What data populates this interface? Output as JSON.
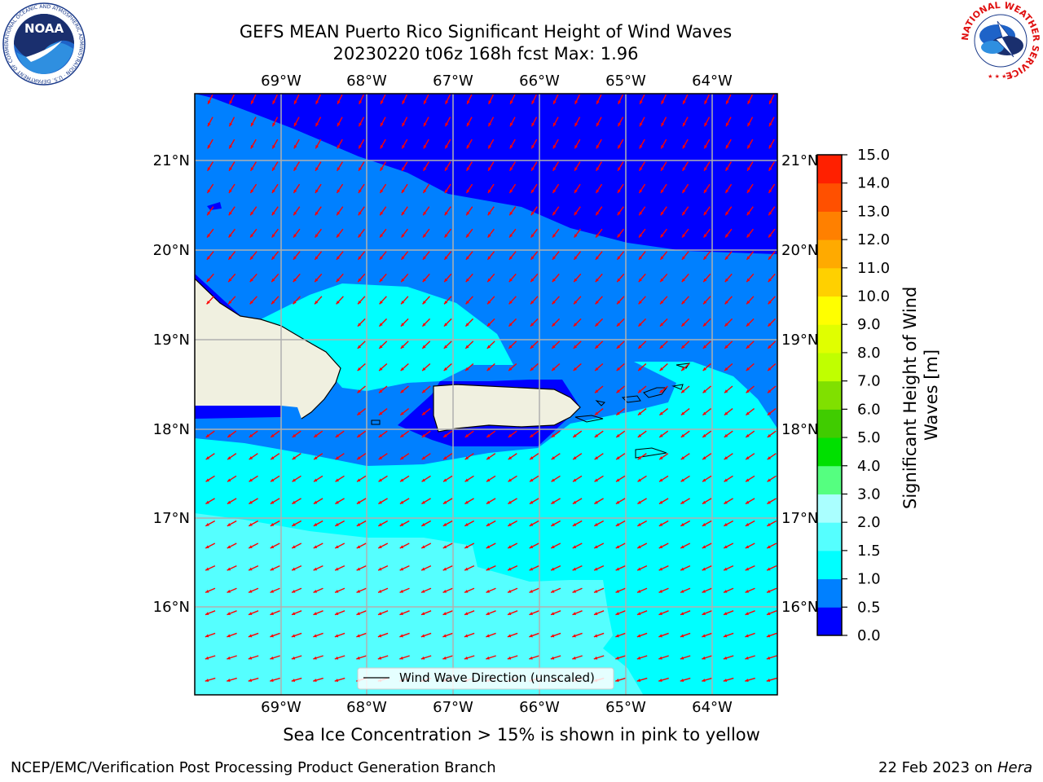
{
  "header": {
    "title_line1": "GEFS MEAN Puerto Rico Significant Height of Wind Waves",
    "title_line2": "20230220 t06z 168h fcst   Max: 1.96"
  },
  "logos": {
    "left": {
      "name": "NOAA",
      "text": "NOAA",
      "ring_text": "NATIONAL OCEANIC AND ATMOSPHERIC ADMINISTRATION · U.S. DEPARTMENT OF COMMERCE"
    },
    "right": {
      "name": "National Weather Service",
      "ring_text": "NATIONAL WEATHER SERVICE"
    }
  },
  "map": {
    "lon_labels": [
      "69°W",
      "68°W",
      "67°W",
      "66°W",
      "65°W",
      "64°W"
    ],
    "lat_labels": [
      "21°N",
      "20°N",
      "19°N",
      "18°N",
      "17°N",
      "16°N"
    ],
    "legend_label": "Wind Wave Direction (unscaled)",
    "arrow_color": "#ff0000"
  },
  "colorbar": {
    "label": "Significant Height of Wind Waves [m]",
    "label_line1": "Significant Height of Wind",
    "label_line2": "Waves [m]",
    "tick_labels": [
      "0.0",
      "0.5",
      "1.0",
      "1.5",
      "2.0",
      "3.0",
      "4.0",
      "5.0",
      "6.0",
      "7.0",
      "8.0",
      "9.0",
      "10.0",
      "11.0",
      "12.0",
      "13.0",
      "14.0",
      "15.0"
    ],
    "colors": [
      "#0000ff",
      "#0080ff",
      "#00ffff",
      "#55ffff",
      "#aaffff",
      "#55ff80",
      "#00e000",
      "#40cc00",
      "#80e000",
      "#c0ff00",
      "#e0ff00",
      "#ffff00",
      "#ffd000",
      "#ffaa00",
      "#ff8000",
      "#ff5000",
      "#ff2000"
    ]
  },
  "footer": {
    "sea_ice": "Sea Ice Concentration > 15% is shown in pink to yellow",
    "left": "NCEP/EMC/Verification Post Processing Product Generation Branch",
    "date": "22 Feb 2023 on",
    "host": "Hera"
  }
}
